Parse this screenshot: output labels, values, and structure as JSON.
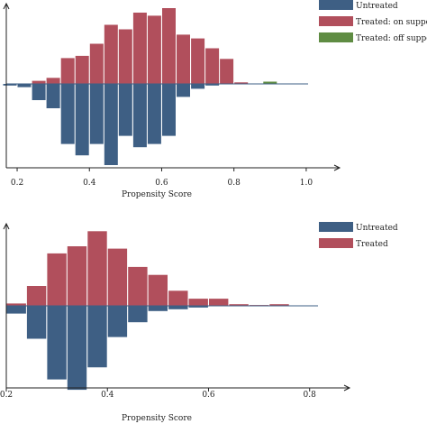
{
  "colors": {
    "untreated": "#3e5f84",
    "treated": "#b14f5c",
    "off_support": "#5f8c43",
    "axis": "#222222"
  },
  "chart_data": [
    {
      "type": "bar",
      "title": "",
      "xlabel": "Propensity Score",
      "ylabel": "",
      "xlim": [
        0.17,
        1.08
      ],
      "x_ticks": [
        0.2,
        0.4,
        0.6,
        0.8,
        1.0
      ],
      "x_tick_labels": [
        "0.2",
        "0.4",
        "0.6",
        "0.8",
        "1.0"
      ],
      "ylim": [
        -1.08,
        1.0
      ],
      "bin_width": 0.04,
      "grid": false,
      "legend_position": "top-right",
      "legend": [
        "Untreated",
        "Treated: on support",
        "Treated: off support"
      ],
      "series": [
        {
          "name": "Untreated",
          "direction": "down",
          "x": [
            0.18,
            0.22,
            0.26,
            0.3,
            0.34,
            0.38,
            0.42,
            0.46,
            0.5,
            0.54,
            0.58,
            0.62,
            0.66,
            0.7,
            0.74,
            0.78,
            0.82,
            0.86,
            0.9
          ],
          "values": [
            0.02,
            0.04,
            0.2,
            0.3,
            0.74,
            0.88,
            0.74,
            1.0,
            0.64,
            0.78,
            0.74,
            0.64,
            0.16,
            0.06,
            0.02,
            0.0,
            0.0,
            0.0,
            0.0
          ]
        },
        {
          "name": "Treated: on support",
          "direction": "up",
          "x": [
            0.22,
            0.26,
            0.3,
            0.34,
            0.38,
            0.42,
            0.46,
            0.5,
            0.54,
            0.58,
            0.62,
            0.66,
            0.7,
            0.74,
            0.78,
            0.82,
            0.86,
            0.9
          ],
          "values": [
            0.0,
            0.04,
            0.08,
            0.34,
            0.37,
            0.53,
            0.78,
            0.72,
            0.94,
            0.9,
            1.0,
            0.65,
            0.6,
            0.47,
            0.33,
            0.02,
            0.0,
            0.0
          ],
          "x_offset_bins": 1
        },
        {
          "name": "Treated: off support",
          "direction": "up",
          "x": [
            0.9
          ],
          "values": [
            0.03
          ]
        }
      ]
    },
    {
      "type": "bar",
      "title": "",
      "xlabel": "Propensity Score",
      "ylabel": "",
      "xlim": [
        0.2,
        0.87
      ],
      "x_ticks": [
        0.2,
        0.4,
        0.6,
        0.8
      ],
      "x_tick_labels": [
        "0.2",
        "0.4",
        "0.6",
        "0.8"
      ],
      "ylim": [
        -1.0,
        0.92
      ],
      "bin_width": 0.04,
      "grid": false,
      "legend_position": "top-right",
      "legend": [
        "Untreated",
        "Treated"
      ],
      "series": [
        {
          "name": "Untreated",
          "direction": "down",
          "x": [
            0.22,
            0.26,
            0.3,
            0.34,
            0.38,
            0.42,
            0.46,
            0.5,
            0.54,
            0.58,
            0.62,
            0.66,
            0.7
          ],
          "values": [
            0.09,
            0.38,
            0.85,
            0.97,
            0.71,
            0.36,
            0.19,
            0.06,
            0.04,
            0.02,
            0.0,
            0.0,
            0.0
          ]
        },
        {
          "name": "Treated",
          "direction": "up",
          "x": [
            0.22,
            0.26,
            0.3,
            0.34,
            0.38,
            0.42,
            0.46,
            0.5,
            0.54,
            0.58,
            0.62,
            0.66,
            0.7,
            0.74,
            0.78,
            0.82
          ],
          "values": [
            0.03,
            0.25,
            0.66,
            0.75,
            0.94,
            0.72,
            0.49,
            0.39,
            0.19,
            0.09,
            0.09,
            0.02,
            0.01,
            0.02,
            0.0,
            0.0
          ]
        }
      ]
    }
  ]
}
